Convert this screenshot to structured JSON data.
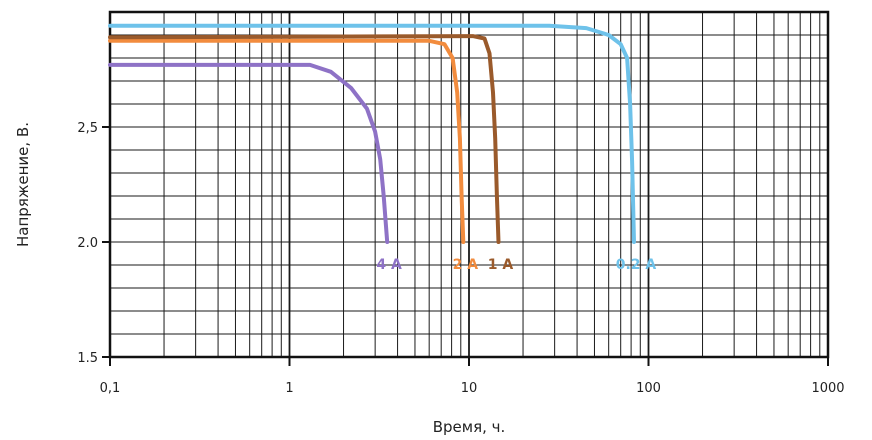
{
  "chart_data": {
    "type": "line",
    "title": "",
    "xlabel": "Время, ч.",
    "ylabel": "Напряжение, В.",
    "x_scale": "log",
    "xlim": [
      0.1,
      1000
    ],
    "ylim": [
      1.5,
      3.0
    ],
    "x_ticks": [
      0.1,
      1,
      10,
      100,
      1000
    ],
    "x_tick_labels": [
      "0,1",
      "1",
      "10",
      "100",
      "1000"
    ],
    "y_ticks": [
      1.5,
      2.0,
      2.5
    ],
    "y_tick_labels": [
      "1.5",
      "2.0",
      "2,5"
    ],
    "grid": true,
    "series": [
      {
        "name": "4 A",
        "color": "#8e72c6",
        "points": [
          [
            0.1,
            2.77
          ],
          [
            1.3,
            2.77
          ],
          [
            1.7,
            2.74
          ],
          [
            2.2,
            2.67
          ],
          [
            2.7,
            2.58
          ],
          [
            3.0,
            2.48
          ],
          [
            3.2,
            2.36
          ],
          [
            3.35,
            2.2
          ],
          [
            3.5,
            2.0
          ]
        ]
      },
      {
        "name": "2 A",
        "color": "#f28c3e",
        "points": [
          [
            0.1,
            2.875
          ],
          [
            6.0,
            2.875
          ],
          [
            7.3,
            2.86
          ],
          [
            8.1,
            2.8
          ],
          [
            8.6,
            2.65
          ],
          [
            8.9,
            2.45
          ],
          [
            9.1,
            2.2
          ],
          [
            9.3,
            2.0
          ]
        ]
      },
      {
        "name": "1 A",
        "color": "#9a5a2b",
        "points": [
          [
            0.1,
            2.89
          ],
          [
            10.5,
            2.895
          ],
          [
            12.2,
            2.885
          ],
          [
            13.0,
            2.82
          ],
          [
            13.6,
            2.65
          ],
          [
            14.0,
            2.45
          ],
          [
            14.3,
            2.2
          ],
          [
            14.6,
            2.0
          ]
        ]
      },
      {
        "name": "0.2 A",
        "color": "#6ec2ea",
        "points": [
          [
            0.1,
            2.94
          ],
          [
            28,
            2.94
          ],
          [
            45,
            2.93
          ],
          [
            60,
            2.9
          ],
          [
            70,
            2.86
          ],
          [
            76,
            2.8
          ],
          [
            79,
            2.6
          ],
          [
            81,
            2.35
          ],
          [
            83,
            2.0
          ]
        ]
      }
    ]
  }
}
